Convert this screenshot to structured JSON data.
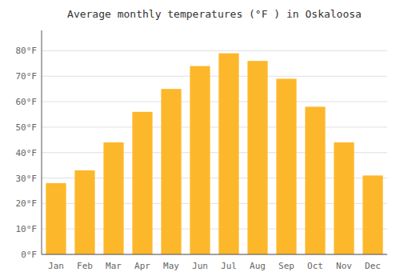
{
  "chart_data": {
    "type": "bar",
    "title": "Average monthly temperatures (°F ) in Oskaloosa",
    "categories": [
      "Jan",
      "Feb",
      "Mar",
      "Apr",
      "May",
      "Jun",
      "Jul",
      "Aug",
      "Sep",
      "Oct",
      "Nov",
      "Dec"
    ],
    "values": [
      28,
      33,
      44,
      56,
      65,
      74,
      79,
      76,
      69,
      58,
      44,
      31
    ],
    "color": "#FDB72A",
    "ylim": [
      0,
      88
    ],
    "yticks": [
      {
        "value": 0,
        "label": "0°F"
      },
      {
        "value": 10,
        "label": "10°F"
      },
      {
        "value": 20,
        "label": "20°F"
      },
      {
        "value": 30,
        "label": "30°F"
      },
      {
        "value": 40,
        "label": "40°F"
      },
      {
        "value": 50,
        "label": "50°F"
      },
      {
        "value": 60,
        "label": "60°F"
      },
      {
        "value": 70,
        "label": "70°F"
      },
      {
        "value": 80,
        "label": "80°F"
      }
    ],
    "grid": true
  }
}
